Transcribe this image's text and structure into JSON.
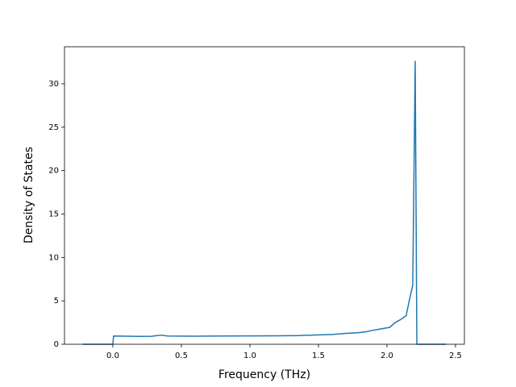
{
  "chart_data": {
    "type": "line",
    "x_label": "Frequency (THz)",
    "y_label": "Density of States",
    "x": [
      -0.22,
      0.0,
      0.005,
      0.1,
      0.2,
      0.28,
      0.35,
      0.4,
      0.6,
      0.8,
      1.0,
      1.2,
      1.35,
      1.5,
      1.6,
      1.7,
      1.8,
      1.85,
      1.9,
      1.95,
      2.02,
      2.06,
      2.1,
      2.14,
      2.165,
      2.188,
      2.206,
      2.218,
      2.43
    ],
    "values": [
      0,
      0,
      0.95,
      0.93,
      0.9,
      0.92,
      1.05,
      0.95,
      0.93,
      0.95,
      0.96,
      0.98,
      1.0,
      1.08,
      1.13,
      1.25,
      1.35,
      1.45,
      1.62,
      1.75,
      1.95,
      2.5,
      2.85,
      3.3,
      5.2,
      6.8,
      32.6,
      0,
      0
    ],
    "color": "#1f77b4",
    "xlim": [
      -0.353,
      2.565
    ],
    "xticks": [
      {
        "value": 0.0,
        "label": "0.0"
      },
      0.5,
      {
        "value": 1.0,
        "label": "1.0"
      },
      1.5,
      {
        "value": 2.0,
        "label": "2.0"
      },
      2.5
    ],
    "ylim": [
      0,
      34.27
    ],
    "yticks": [
      0,
      5,
      10,
      15,
      20,
      25,
      30
    ],
    "grid": false
  }
}
